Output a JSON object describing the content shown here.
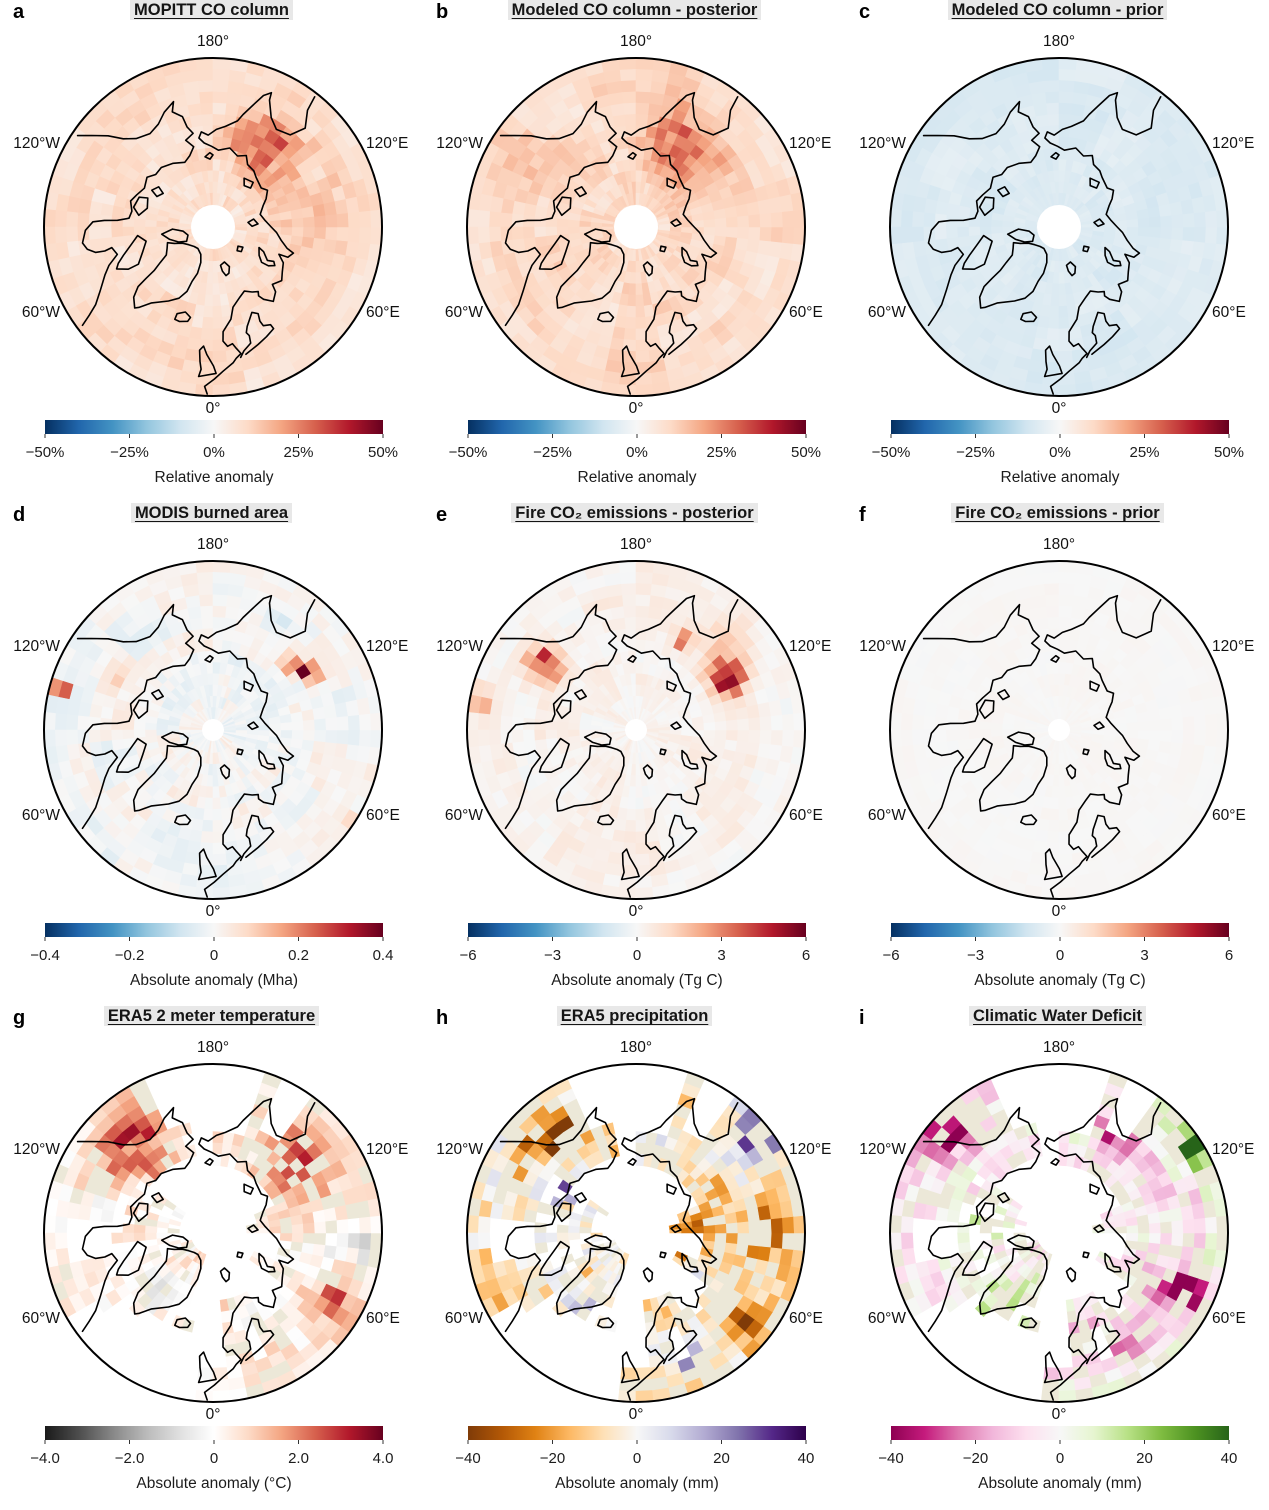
{
  "map_labels": {
    "top": "180°",
    "upper_left": "120°W",
    "upper_right": "120°E",
    "lower_left": "60°W",
    "lower_right": "60°E",
    "bottom": "0°"
  },
  "land_color": "#ece8d8",
  "ocean_color": "#ffffff",
  "coastline_color": "#000000",
  "title_highlight_color": "#e8e8e8",
  "colormaps": {
    "RdBu_r": [
      "#053061",
      "#2166ac",
      "#4393c3",
      "#92c5de",
      "#d1e5f0",
      "#f7f7f7",
      "#fddbc7",
      "#f4a582",
      "#d6604d",
      "#b2182b",
      "#67001f"
    ],
    "RdGy_r": [
      "#1a1a1a",
      "#4d4d4d",
      "#878787",
      "#bababa",
      "#e0e0e0",
      "#ffffff",
      "#fddbc7",
      "#f4a582",
      "#d6604d",
      "#b2182b",
      "#67001f"
    ],
    "PuOr_r": [
      "#7f3b08",
      "#b35806",
      "#e08214",
      "#fdb863",
      "#fee0b6",
      "#f7f7f7",
      "#d8daeb",
      "#b2abd2",
      "#8073ac",
      "#542788",
      "#2d004b"
    ],
    "PiYG": [
      "#8e0152",
      "#c51b7d",
      "#de77ae",
      "#f1b6da",
      "#fde0ef",
      "#f7f7f7",
      "#e6f5d0",
      "#b8e186",
      "#7fbc41",
      "#4d9221",
      "#276419"
    ]
  },
  "chart_data": [
    {
      "panel": "a",
      "letter": "a",
      "type": "map-heatmap",
      "projection": "north_polar_stereographic",
      "title": "MOPITT CO column",
      "colorbar": {
        "cmap": "RdBu_r",
        "vmin": -50,
        "vmax": 50,
        "ticks": [
          "−50%",
          "−25%",
          "0%",
          "25%",
          "50%"
        ],
        "label": "Relative anomaly"
      },
      "summary": "Weak positive CO anomalies (~+5–15%) over the whole Arctic cap; stronger patch (~+30%) over eastern Siberia; white data gap at the pole.",
      "pattern": {
        "seed": 1,
        "base": 8,
        "noise": 5,
        "pole_hole": true,
        "land_only": false,
        "nan_prob": 0,
        "hotspots": [
          {
            "lat": 65,
            "lon": 148,
            "amp": 22,
            "sigma": 0.2
          },
          {
            "lat": 62,
            "lon": 100,
            "amp": 6,
            "sigma": 0.25
          }
        ]
      }
    },
    {
      "panel": "b",
      "letter": "b",
      "type": "map-heatmap",
      "projection": "north_polar_stereographic",
      "title": "Modeled CO column - posterior",
      "colorbar": {
        "cmap": "RdBu_r",
        "vmin": -50,
        "vmax": 50,
        "ticks": [
          "−50%",
          "−25%",
          "0%",
          "25%",
          "50%"
        ],
        "label": "Relative anomaly"
      },
      "summary": "Very similar to MOPITT: pan-Arctic positive anomalies with eastern Siberian maximum; polar data gap.",
      "pattern": {
        "seed": 2,
        "base": 9,
        "noise": 5,
        "pole_hole": true,
        "land_only": false,
        "nan_prob": 0,
        "hotspots": [
          {
            "lat": 65,
            "lon": 150,
            "amp": 20,
            "sigma": 0.22
          },
          {
            "lat": 60,
            "lon": -120,
            "amp": 5,
            "sigma": 0.2
          }
        ]
      }
    },
    {
      "panel": "c",
      "letter": "c",
      "type": "map-heatmap",
      "projection": "north_polar_stereographic",
      "title": "Modeled CO column - prior",
      "colorbar": {
        "cmap": "RdBu_r",
        "vmin": -50,
        "vmax": 50,
        "ticks": [
          "−50%",
          "−25%",
          "0%",
          "25%",
          "50%"
        ],
        "label": "Relative anomaly"
      },
      "summary": "Uniform weak negative anomaly (~−5 to −10%) everywhere; polar data gap.",
      "pattern": {
        "seed": 3,
        "base": -7,
        "noise": 2.5,
        "pole_hole": true,
        "land_only": false,
        "nan_prob": 0,
        "hotspots": []
      }
    },
    {
      "panel": "d",
      "letter": "d",
      "type": "map-heatmap",
      "projection": "north_polar_stereographic",
      "title": "MODIS burned area",
      "colorbar": {
        "cmap": "RdBu_r",
        "vmin": -0.4,
        "vmax": 0.4,
        "ticks": [
          "−0.4",
          "−0.2",
          "0",
          "0.2",
          "0.4"
        ],
        "label": "Absolute anomaly (Mha)"
      },
      "summary": "Mostly near zero; strong positive burned-area cluster (~+0.4 Mha) in eastern Siberia near 120°E and isolated dark-red cells near the western map edge.",
      "pattern": {
        "seed": 4,
        "base": 0,
        "noise": 0.05,
        "pole_hole": false,
        "land_only": false,
        "nan_prob": 0,
        "hotspots": [
          {
            "lat": 61,
            "lon": 123,
            "amp": 0.55,
            "sigma": 0.045
          },
          {
            "lat": 63,
            "lon": 131,
            "amp": 0.35,
            "sigma": 0.04
          },
          {
            "lat": 59,
            "lon": 118,
            "amp": 0.3,
            "sigma": 0.04
          },
          {
            "lat": 48,
            "lon": -105,
            "amp": 0.5,
            "sigma": 0.035
          },
          {
            "lat": 46,
            "lon": 55,
            "amp": 0.28,
            "sigma": 0.03
          },
          {
            "lat": 60,
            "lon": -120,
            "amp": 0.08,
            "sigma": 0.1
          },
          {
            "lat": 58,
            "lon": 150,
            "amp": -0.07,
            "sigma": 0.08
          }
        ]
      }
    },
    {
      "panel": "e",
      "letter": "e",
      "type": "map-heatmap",
      "projection": "north_polar_stereographic",
      "title": "Fire CO₂ emissions - posterior",
      "colorbar": {
        "cmap": "RdBu_r",
        "vmin": -6,
        "vmax": 6,
        "ticks": [
          "−6",
          "−3",
          "0",
          "3",
          "6"
        ],
        "label": "Absolute anomaly (Tg C)"
      },
      "summary": "Positive fire-emission anomalies (up to ~+6 Tg C) over eastern Siberia and northwestern Canada/Alaska; near zero elsewhere.",
      "pattern": {
        "seed": 5,
        "base": 0.25,
        "noise": 0.5,
        "pole_hole": false,
        "land_only": false,
        "nan_prob": 0,
        "hotspots": [
          {
            "lat": 62,
            "lon": 120,
            "amp": 5.5,
            "sigma": 0.1
          },
          {
            "lat": 60,
            "lon": -125,
            "amp": 4.5,
            "sigma": 0.1
          },
          {
            "lat": 63,
            "lon": 153,
            "amp": 4.0,
            "sigma": 0.05
          },
          {
            "lat": 48,
            "lon": -100,
            "amp": 2.2,
            "sigma": 0.08
          },
          {
            "lat": 57,
            "lon": 135,
            "amp": 1.5,
            "sigma": 0.15
          }
        ]
      }
    },
    {
      "panel": "f",
      "letter": "f",
      "type": "map-heatmap",
      "projection": "north_polar_stereographic",
      "title": "Fire CO₂ emissions - prior",
      "colorbar": {
        "cmap": "RdBu_r",
        "vmin": -6,
        "vmax": 6,
        "ticks": [
          "−6",
          "−3",
          "0",
          "3",
          "6"
        ],
        "label": "Absolute anomaly (Tg C)"
      },
      "summary": "Essentially zero anomaly everywhere (uniform near-white map).",
      "pattern": {
        "seed": 6,
        "base": 0.05,
        "noise": 0.12,
        "pole_hole": false,
        "land_only": false,
        "nan_prob": 0,
        "hotspots": []
      }
    },
    {
      "panel": "g",
      "letter": "g",
      "type": "map-heatmap",
      "projection": "north_polar_stereographic",
      "title": "ERA5 2 meter temperature",
      "colorbar": {
        "cmap": "RdGy_r",
        "vmin": -4.0,
        "vmax": 4.0,
        "ticks": [
          "−4.0",
          "−2.0",
          "0",
          "2.0",
          "4.0"
        ],
        "label": "Absolute anomaly (°C)"
      },
      "summary": "Land-only field: warm anomalies (+2 to +3 °C) over Alaska/NW Canada and eastern Siberia; gray (cool) patch over western Siberia near the eastern map edge; near zero elsewhere.",
      "pattern": {
        "seed": 7,
        "base": 0.35,
        "noise": 0.8,
        "pole_hole": false,
        "land_only": true,
        "nan_prob": 0.22,
        "hotspots": [
          {
            "lat": 58,
            "lon": -140,
            "amp": 2.6,
            "sigma": 0.22
          },
          {
            "lat": 60,
            "lon": 132,
            "amp": 3.0,
            "sigma": 0.2
          },
          {
            "lat": 53,
            "lon": 60,
            "amp": 1.6,
            "sigma": 0.15
          },
          {
            "lat": 50,
            "lon": 88,
            "amp": -1.5,
            "sigma": 0.15
          },
          {
            "lat": 70,
            "lon": -42,
            "amp": -0.8,
            "sigma": 0.13
          }
        ]
      }
    },
    {
      "panel": "h",
      "letter": "h",
      "type": "map-heatmap",
      "projection": "north_polar_stereographic",
      "title": "ERA5 precipitation",
      "colorbar": {
        "cmap": "PuOr_r",
        "vmin": -40,
        "vmax": 40,
        "ticks": [
          "−40",
          "−20",
          "0",
          "20",
          "40"
        ],
        "label": "Absolute anomaly (mm)"
      },
      "summary": "Land-only field: widespread dry (orange, −20 to −40 mm) anomalies over Siberia, Alaska and western Russia; wet (purple, +20 to +40 mm) clusters beyond 120°E, over Banks Island region and Greenland.",
      "pattern": {
        "seed": 8,
        "base": -6,
        "noise": 16,
        "pole_hole": false,
        "land_only": true,
        "nan_prob": 0.3,
        "hotspots": [
          {
            "lat": 48,
            "lon": 128,
            "amp": 42,
            "sigma": 0.14
          },
          {
            "lat": 68,
            "lon": -118,
            "amp": 26,
            "sigma": 0.12
          },
          {
            "lat": 66,
            "lon": -44,
            "amp": 16,
            "sigma": 0.15
          },
          {
            "lat": 54,
            "lon": 22,
            "amp": 22,
            "sigma": 0.1
          },
          {
            "lat": 56,
            "lon": -140,
            "amp": -32,
            "sigma": 0.16
          },
          {
            "lat": 54,
            "lon": 90,
            "amp": -26,
            "sigma": 0.18
          },
          {
            "lat": 52,
            "lon": 50,
            "amp": -32,
            "sigma": 0.13
          },
          {
            "lat": 53,
            "lon": 152,
            "amp": -26,
            "sigma": 0.12
          },
          {
            "lat": 74,
            "lon": 95,
            "amp": -20,
            "sigma": 0.2
          }
        ]
      }
    },
    {
      "panel": "i",
      "letter": "i",
      "type": "map-heatmap",
      "projection": "north_polar_stereographic",
      "title": "Climatic Water Deficit",
      "colorbar": {
        "cmap": "PiYG",
        "vmin": -40,
        "vmax": 40,
        "ticks": [
          "−40",
          "−20",
          "0",
          "20",
          "40"
        ],
        "label": "Absolute anomaly (mm)"
      },
      "summary": "Land-only field: strong magenta (negative, −20 to −40 mm) anomalies over NW North America, eastern Siberia and western Russia/Urals; green (positive) clusters beyond 120°E, over the Canadian archipelago and Greenland.",
      "pattern": {
        "seed": 9,
        "base": -4,
        "noise": 16,
        "pole_hole": false,
        "land_only": true,
        "nan_prob": 0.3,
        "hotspots": [
          {
            "lat": 48,
            "lon": 122,
            "amp": 40,
            "sigma": 0.13
          },
          {
            "lat": 74,
            "lon": -104,
            "amp": 28,
            "sigma": 0.12
          },
          {
            "lat": 68,
            "lon": -44,
            "amp": 20,
            "sigma": 0.14
          },
          {
            "lat": 64,
            "lon": 168,
            "amp": 22,
            "sigma": 0.1
          },
          {
            "lat": 52,
            "lon": -132,
            "amp": -36,
            "sigma": 0.15
          },
          {
            "lat": 58,
            "lon": 150,
            "amp": -32,
            "sigma": 0.12
          },
          {
            "lat": 53,
            "lon": 64,
            "amp": -40,
            "sigma": 0.15
          },
          {
            "lat": 56,
            "lon": 30,
            "amp": -18,
            "sigma": 0.12
          }
        ]
      }
    }
  ]
}
